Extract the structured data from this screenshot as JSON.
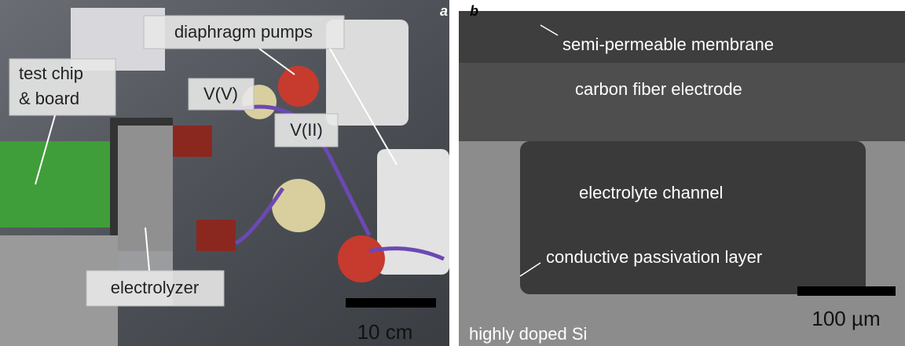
{
  "panels": [
    {
      "label": "a",
      "annotations": [
        "diaphragm pumps",
        "test chip",
        "& board",
        "V(V)",
        "V(II)",
        "electrolyzer"
      ],
      "scale_bar": "10 cm"
    },
    {
      "label": "b",
      "annotations": [
        "semi-permeable membrane",
        "carbon fiber electrode",
        "electrolyte channel",
        "conductive passivation layer",
        "highly doped Si"
      ],
      "scale_bar": "100 µm"
    }
  ]
}
